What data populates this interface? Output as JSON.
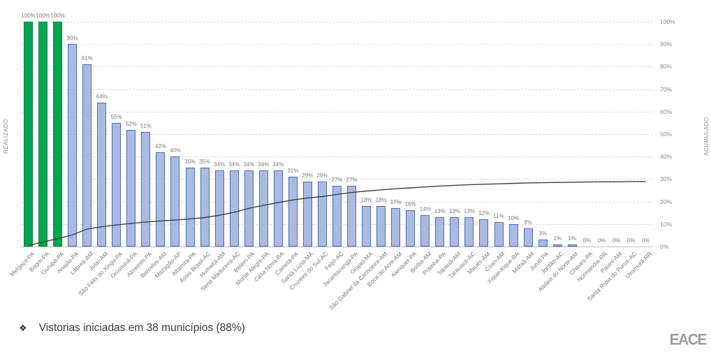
{
  "chart_data": {
    "type": "bar",
    "subtype": "combo-bar-line",
    "categories": [
      "Melgaço-PA",
      "Bagre-PA",
      "Gurupá-PA",
      "Anajás-PA",
      "Lábrea-AM",
      "Jutaí-AM",
      "São Félix do Xingu-PA",
      "Oriximiná-PA",
      "Almeirim-PA",
      "Barcelos-AM",
      "Mazagão-AP",
      "Altamira-PA",
      "Assis Brasil-AC",
      "Humaitá-AM",
      "Sena Madureira-AC",
      "Belém-PA",
      "Monte Alegre-PA",
      "Casa Nova-BA",
      "Cametá-PA",
      "Santa Luzia-MA",
      "Cruzeiro do Sul-AC",
      "Feijó-AC",
      "Jacareacanga-PA",
      "Grajaú-MA",
      "São Gabriel da Cachoeira-AM",
      "Boca do Acre-AM",
      "Alenquer-PA",
      "Borba-AM",
      "Prainha-PA",
      "Tapauá-AM",
      "Tarauacá-AC",
      "Maués-AM",
      "Coari-AM",
      "Xique-Xique-BA",
      "Maraã-AM",
      "Juruti-PA",
      "Jordão-AC",
      "Atalaia do Norte-AM",
      "Chaves-PA",
      "Normandia-RR",
      "Pauini-AM",
      "Santa Rosa do Purus-AC",
      "Uiramutã-RR"
    ],
    "series": [
      {
        "name": "REALIZADO",
        "type": "bar",
        "values": [
          100,
          100,
          100,
          90,
          81,
          64,
          55,
          52,
          51,
          42,
          40,
          35,
          35,
          34,
          34,
          34,
          34,
          34,
          31,
          29,
          29,
          27,
          27,
          18,
          18,
          17,
          16,
          14,
          13,
          13,
          13,
          12,
          11,
          10,
          8,
          3,
          1,
          1,
          0,
          0,
          0,
          0,
          0
        ],
        "data_labels": true
      },
      {
        "name": "ACUMULADO",
        "type": "line",
        "values": [
          0.5,
          2,
          3.5,
          5.2,
          7.8,
          8.8,
          9.6,
          10.3,
          10.9,
          11.4,
          11.8,
          12.3,
          12.9,
          13.9,
          15.2,
          17,
          18.3,
          19.6,
          20.7,
          21.6,
          22.2,
          23.2,
          24,
          24.7,
          25.2,
          25.7,
          26.1,
          26.5,
          26.9,
          27.2,
          27.5,
          27.7,
          27.9,
          28.1,
          28.3,
          28.4,
          28.5,
          28.6,
          28.7,
          28.8,
          28.8,
          28.9,
          28.9
        ]
      }
    ],
    "ylabel_left": "REALIZADO",
    "ylabel_right": "ACUMULADO",
    "right_axis_tick_values": [
      0,
      10,
      20,
      30,
      40,
      50,
      60,
      70,
      80,
      90,
      100
    ],
    "ylim": [
      0,
      100
    ],
    "grid": "horizontal-dashed",
    "legend": "none",
    "highlight_indices": [
      0,
      1,
      2
    ],
    "colors": {
      "bar_fill": "#a9bbe3",
      "bar_border": "#4d6db1",
      "highlight_fill": "#00a651",
      "highlight_border": "#00883f",
      "line": "#404040",
      "gridline": "#d9d9d9",
      "label_text": "#7f7f7f"
    }
  },
  "footer": {
    "bullet": "❖",
    "note": "Vistorias iniciadas em 38 municípios (88%)"
  },
  "logo_text": "EACE"
}
